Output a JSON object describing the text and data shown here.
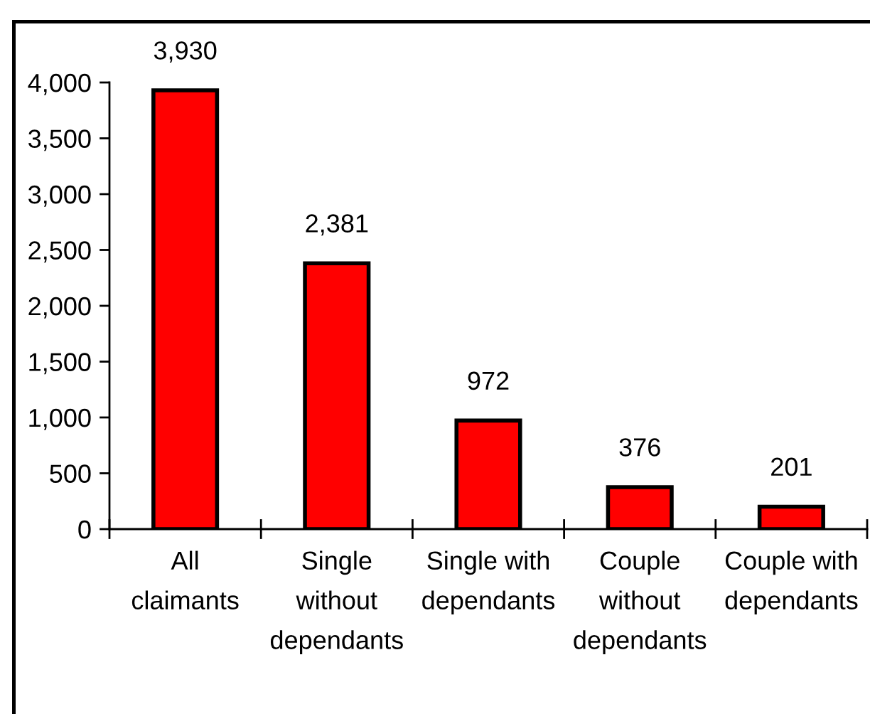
{
  "chart_data": {
    "type": "bar",
    "categories": [
      "All\nclaimants",
      "Single\nwithout\ndependants",
      "Single with\ndependants",
      "Couple\nwithout\ndependants",
      "Couple with\ndependants"
    ],
    "values": [
      3930,
      2381,
      972,
      376,
      201
    ],
    "color": "#ff0000",
    "value_labels": [
      "3,930",
      "2,381",
      "972",
      "376",
      "201"
    ],
    "ylim": [
      0,
      4000
    ],
    "yticks": [
      0,
      500,
      {
        "value": 1000,
        "label": "1,000"
      },
      {
        "value": 1500,
        "label": "1,500"
      },
      {
        "value": 2000,
        "label": "2,000"
      },
      {
        "value": 2500,
        "label": "2,500"
      },
      {
        "value": 3000,
        "label": "3,000"
      },
      {
        "value": 3500,
        "label": "3,500"
      },
      {
        "value": 4000,
        "label": "4,000"
      }
    ],
    "grid": false,
    "legend": false
  }
}
